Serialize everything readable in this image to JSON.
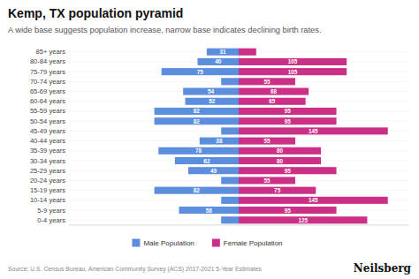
{
  "chart_data": {
    "type": "bar",
    "orientation": "horizontal",
    "title": "Kemp, TX population pyramid",
    "subtitle": "A wide base suggests population increase, narrow base indicates declining birth rates.",
    "annotations": [
      "Source: U.S. Census Bureau, American Community Survey (ACS) 2017-2021 5-Year Estimates",
      "Neilsberg"
    ],
    "categories": [
      "0-4 years",
      "5-9 years",
      "10-14 years",
      "15-19 years",
      "20-24 years",
      "25-29 years",
      "30-34 years",
      "35-39 years",
      "40-44 years",
      "45-49 years",
      "50-54 years",
      "55-59 years",
      "60-64 years",
      "65-69 years",
      "70-74 years",
      "75-79 years",
      "80-84 years",
      "85+ years"
    ],
    "series": [
      {
        "name": "Male Population",
        "color": "#5b8fde",
        "values": [
          17,
          58,
          17,
          82,
          17,
          49,
          62,
          78,
          38,
          17,
          82,
          82,
          52,
          54,
          17,
          75,
          40,
          31
        ],
        "value_labels": [
          null,
          "58",
          null,
          "82",
          null,
          "49",
          "62",
          "78",
          "38",
          null,
          "82",
          "82",
          "52",
          "54",
          null,
          "75",
          "40",
          "31"
        ]
      },
      {
        "name": "Female Population",
        "color": "#cc2f86",
        "values": [
          125,
          95,
          145,
          75,
          55,
          95,
          80,
          80,
          55,
          145,
          95,
          95,
          65,
          68,
          55,
          105,
          105,
          17
        ],
        "value_labels": [
          "125",
          "95",
          "145",
          "75",
          "55",
          "95",
          "80",
          "80",
          "55",
          "145",
          "95",
          "95",
          "65",
          "68",
          "55",
          "105",
          "105",
          null
        ]
      }
    ],
    "xlim": [
      -165,
      165
    ],
    "xticks": [],
    "tick_labels": "y",
    "grid": true,
    "legend": "bottom",
    "data_labels": true
  }
}
